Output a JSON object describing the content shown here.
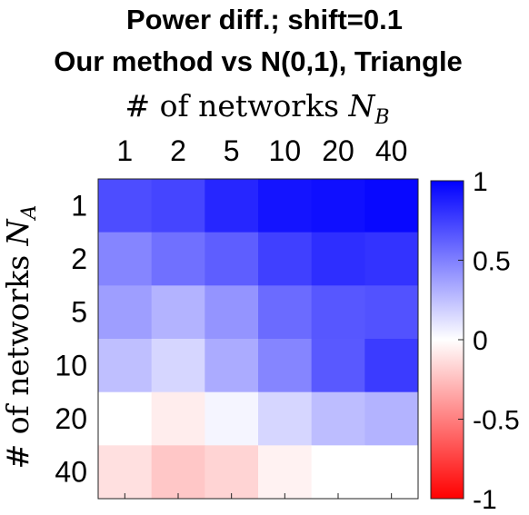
{
  "chart_data": {
    "type": "heatmap",
    "title": [
      "Power diff.; shift=0.1",
      "Our method vs N(0,1), Triangle"
    ],
    "xlabel": "# of networks N_B",
    "ylabel": "# of networks N_A",
    "x_categories": [
      "1",
      "2",
      "5",
      "10",
      "20",
      "40"
    ],
    "y_categories": [
      "1",
      "2",
      "5",
      "10",
      "20",
      "40"
    ],
    "values": [
      [
        0.7,
        0.73,
        0.85,
        0.92,
        0.94,
        0.97
      ],
      [
        0.48,
        0.56,
        0.63,
        0.75,
        0.82,
        0.8
      ],
      [
        0.38,
        0.3,
        0.42,
        0.58,
        0.66,
        0.68
      ],
      [
        0.25,
        0.16,
        0.33,
        0.48,
        0.65,
        0.77
      ],
      [
        0.0,
        -0.07,
        0.04,
        0.16,
        0.26,
        0.3
      ],
      [
        -0.12,
        -0.22,
        -0.17,
        -0.05,
        0.0,
        0.0
      ]
    ],
    "colorbar": {
      "range": [
        -1,
        1
      ],
      "ticks": [
        1,
        0.5,
        0,
        -0.5,
        -1
      ],
      "tick_labels": [
        "1",
        "0.5",
        "0",
        "-0.5",
        "-1"
      ],
      "colors": {
        "low": "#ff0000",
        "mid": "#ffffff",
        "high": "#0000ff"
      }
    }
  }
}
